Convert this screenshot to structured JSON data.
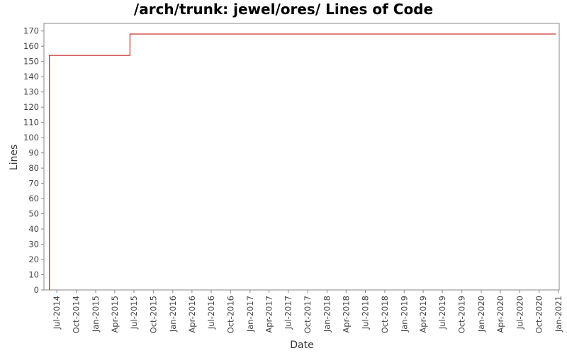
{
  "chart_data": {
    "type": "line",
    "title": "/arch/trunk: jewel/ores/ Lines of Code",
    "xlabel": "Date",
    "ylabel": "Lines",
    "ylim": [
      0,
      175
    ],
    "xlim": [
      "2014-05-01",
      "2021-01-04"
    ],
    "y_ticks": [
      0,
      10,
      20,
      30,
      40,
      50,
      60,
      70,
      80,
      90,
      100,
      110,
      120,
      130,
      140,
      150,
      160,
      170
    ],
    "x_ticks": [
      {
        "date": "2014-07-01",
        "label": "Jul-2014"
      },
      {
        "date": "2014-10-01",
        "label": "Oct-2014"
      },
      {
        "date": "2015-01-01",
        "label": "Jan-2015"
      },
      {
        "date": "2015-04-01",
        "label": "Apr-2015"
      },
      {
        "date": "2015-07-01",
        "label": "Jul-2015"
      },
      {
        "date": "2015-10-01",
        "label": "Oct-2015"
      },
      {
        "date": "2016-01-01",
        "label": "Jan-2016"
      },
      {
        "date": "2016-04-01",
        "label": "Apr-2016"
      },
      {
        "date": "2016-07-01",
        "label": "Jul-2016"
      },
      {
        "date": "2016-10-01",
        "label": "Oct-2016"
      },
      {
        "date": "2017-01-01",
        "label": "Jan-2017"
      },
      {
        "date": "2017-04-01",
        "label": "Apr-2017"
      },
      {
        "date": "2017-07-01",
        "label": "Jul-2017"
      },
      {
        "date": "2017-10-01",
        "label": "Oct-2017"
      },
      {
        "date": "2018-01-01",
        "label": "Jan-2018"
      },
      {
        "date": "2018-04-01",
        "label": "Apr-2018"
      },
      {
        "date": "2018-07-01",
        "label": "Jul-2018"
      },
      {
        "date": "2018-10-01",
        "label": "Oct-2018"
      },
      {
        "date": "2019-01-01",
        "label": "Jan-2019"
      },
      {
        "date": "2019-04-01",
        "label": "Apr-2019"
      },
      {
        "date": "2019-07-01",
        "label": "Jul-2019"
      },
      {
        "date": "2019-10-01",
        "label": "Oct-2019"
      },
      {
        "date": "2020-01-01",
        "label": "Jan-2020"
      },
      {
        "date": "2020-04-01",
        "label": "Apr-2020"
      },
      {
        "date": "2020-07-01",
        "label": "Jul-2020"
      },
      {
        "date": "2020-10-01",
        "label": "Oct-2020"
      },
      {
        "date": "2021-01-01",
        "label": "Jan-2021"
      }
    ],
    "series": [
      {
        "color": "#c00000",
        "step": true,
        "points": [
          {
            "x": "2014-05-27",
            "y": 0
          },
          {
            "x": "2014-05-27",
            "y": 154
          },
          {
            "x": "2015-06-12",
            "y": 154
          },
          {
            "x": "2015-06-12",
            "y": 168
          },
          {
            "x": "2020-12-20",
            "y": 168
          }
        ]
      }
    ],
    "grid": false,
    "legend": "none",
    "colors": {
      "line": "#c00000",
      "axis": "#888888",
      "background": "#ffffff"
    }
  }
}
